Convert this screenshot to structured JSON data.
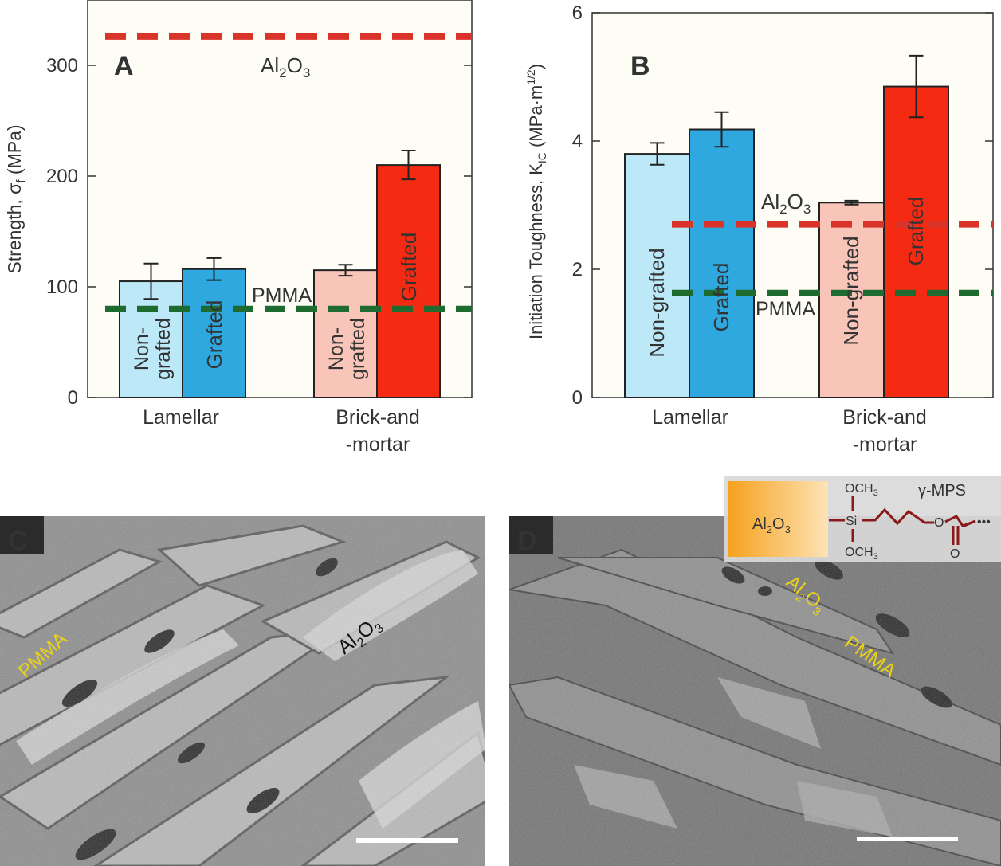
{
  "colors": {
    "plot_bg": "#fdfcf5",
    "lamellar_nongrafted": "#bde8f8",
    "lamellar_grafted": "#2ea8df",
    "bm_nongrafted": "#f9c5b8",
    "bm_grafted": "#f42b12",
    "al2o3_line": "#d9332a",
    "pmma_line": "#1e6b2f",
    "sem_label": "#e8d21a",
    "bar_text": "#ffffff"
  },
  "bar_labels": {
    "nongrafted_split": [
      "Non-",
      "grafted"
    ],
    "nongrafted": "Non-grafted",
    "grafted": "Grafted"
  },
  "chart_data": [
    {
      "type": "bar",
      "panel_letter": "A",
      "ylabel_main": "Strength, σ",
      "ylabel_sub": "f",
      "ylabel_unit": " (MPa)",
      "ylim": [
        0,
        350
      ],
      "yticks": [
        "0",
        "100",
        "200",
        "300"
      ],
      "grid": false,
      "categories": [
        "Lamellar",
        "Brick-and\n-mortar"
      ],
      "bars": [
        {
          "group": "Lamellar",
          "label": "Non-grafted",
          "value": 105,
          "error": 16
        },
        {
          "group": "Lamellar",
          "label": "Grafted",
          "value": 116,
          "error": 10
        },
        {
          "group": "Brick-and-mortar",
          "label": "Non-grafted",
          "value": 115,
          "error": 5
        },
        {
          "group": "Brick-and-mortar",
          "label": "Grafted",
          "value": 210,
          "error": 13
        }
      ],
      "reference_lines": [
        {
          "label_main": "Al",
          "sub1": "2",
          "mid": "O",
          "sub2": "3",
          "value": 326,
          "color": "#d9332a"
        },
        {
          "label_main": "PMMA",
          "value": 80,
          "color": "#1e6b2f"
        }
      ]
    },
    {
      "type": "bar",
      "panel_letter": "B",
      "ylabel_main": "Initiation Toughness, K",
      "ylabel_sub": "IC",
      "ylabel_unit": " (MPa·m",
      "ylabel_sup": "1/2",
      "ylabel_close": ")",
      "ylim": [
        0,
        6
      ],
      "yticks": [
        "0",
        "2",
        "4",
        "6"
      ],
      "grid": false,
      "categories": [
        "Lamellar",
        "Brick-and\n-mortar"
      ],
      "bars": [
        {
          "group": "Lamellar",
          "label": "Non-grafted",
          "value": 3.8,
          "error": 0.17
        },
        {
          "group": "Lamellar",
          "label": "Grafted",
          "value": 4.18,
          "error": 0.27
        },
        {
          "group": "Brick-and-mortar",
          "label": "Non-grafted",
          "value": 3.04,
          "error": 0.03
        },
        {
          "group": "Brick-and-mortar",
          "label": "Grafted",
          "value": 4.85,
          "error": 0.48
        }
      ],
      "reference_lines": [
        {
          "label_main": "Al",
          "sub1": "2",
          "mid": "O",
          "sub2": "3",
          "value": 2.7,
          "color": "#d9332a"
        },
        {
          "label_main": "PMMA",
          "value": 1.63,
          "color": "#1e6b2f"
        }
      ]
    }
  ],
  "sem_panels": {
    "c": {
      "letter": "C",
      "labels": {
        "pmma": "PMMA",
        "al2o3_main": "Al",
        "al2o3_sub1": "2",
        "al2o3_mid": "O",
        "al2o3_sub2": "3"
      }
    },
    "d": {
      "letter": "D",
      "labels": {
        "pmma": "PMMA",
        "al2o3_main": "Al",
        "al2o3_sub1": "2",
        "al2o3_mid": "O",
        "al2o3_sub2": "3"
      }
    }
  },
  "inset": {
    "al2o3_main": "Al",
    "al2o3_sub1": "2",
    "al2o3_mid": "O",
    "al2o3_sub2": "3",
    "och3_top_main": "OCH",
    "och3_top_sub": "3",
    "si": "Si",
    "och3_bottom_main": "OCH",
    "och3_bottom_sub": "3",
    "o_link": "O",
    "o_carbonyl": "O",
    "dots": "•••",
    "mps": "γ-MPS"
  }
}
